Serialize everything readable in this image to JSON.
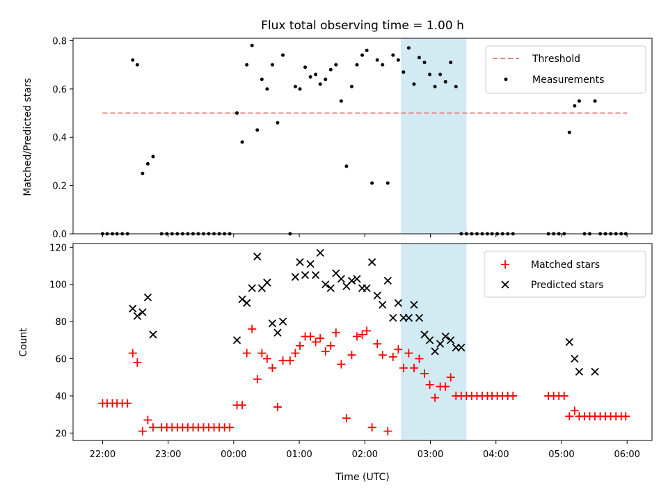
{
  "chart_data": [
    {
      "type": "scatter",
      "title": "Flux total observing time = 1.00 h",
      "xlabel": "",
      "ylabel": "Matched/Predicted stars",
      "ylim": [
        0,
        0.81
      ],
      "yticks": [
        "0.0",
        "0.2",
        "0.4",
        "0.6",
        "0.8"
      ],
      "x_axis": "time (hours after 22:00 UTC)",
      "xlim": [
        -0.45,
        8.38
      ],
      "highlight_span": {
        "start": 4.55,
        "end": 5.55,
        "color": "#add8e6"
      },
      "legend": {
        "position": "top-right",
        "items": [
          "Threshold",
          "Measurements"
        ]
      },
      "series": [
        {
          "name": "Threshold",
          "style": "dashed-line",
          "color": "#f08080",
          "x": [
            0,
            8.0
          ],
          "y": [
            0.5,
            0.5
          ]
        },
        {
          "name": "Measurements",
          "style": "dot",
          "color": "#000000",
          "x": [
            0,
            0.07,
            0.15,
            0.22,
            0.3,
            0.38,
            0.46,
            0.53,
            0.61,
            0.69,
            0.77,
            0.9,
            0.98,
            1.06,
            1.14,
            1.22,
            1.3,
            1.38,
            1.46,
            1.54,
            1.62,
            1.7,
            1.78,
            1.86,
            1.94,
            2.05,
            2.13,
            2.2,
            2.28,
            2.36,
            2.43,
            2.51,
            2.59,
            2.67,
            2.75,
            2.86,
            2.94,
            3.01,
            3.09,
            3.17,
            3.25,
            3.32,
            3.4,
            3.48,
            3.56,
            3.64,
            3.72,
            3.8,
            3.88,
            3.96,
            4.03,
            4.11,
            4.19,
            4.27,
            4.35,
            4.43,
            4.51,
            4.59,
            4.67,
            4.75,
            4.83,
            4.91,
            4.99,
            5.07,
            5.15,
            5.23,
            5.31,
            5.39,
            5.47,
            5.55,
            5.63,
            5.71,
            5.79,
            5.87,
            5.94,
            6.02,
            6.1,
            6.18,
            6.26,
            6.8,
            6.88,
            6.96,
            7.04,
            7.12,
            7.2,
            7.27,
            7.35,
            7.43,
            7.51,
            7.59,
            7.67,
            7.75,
            7.83,
            7.91,
            7.98
          ],
          "y": [
            0,
            0,
            0,
            0,
            0,
            0,
            0.72,
            0.7,
            0.25,
            0.29,
            0.32,
            0,
            0,
            0,
            0,
            0,
            0,
            0,
            0,
            0,
            0,
            0,
            0,
            0,
            0,
            0.5,
            0.38,
            0.7,
            0.78,
            0.43,
            0.64,
            0.6,
            0.7,
            0.46,
            0.74,
            0,
            0.61,
            0.6,
            0.69,
            0.65,
            0.66,
            0.62,
            0.64,
            0.68,
            0.7,
            0.55,
            0.28,
            0.61,
            0.7,
            0.74,
            0.76,
            0.21,
            0.72,
            0.7,
            0.21,
            0.74,
            0.72,
            0.67,
            0.77,
            0.62,
            0.73,
            0.71,
            0.66,
            0.61,
            0.66,
            0.63,
            0.71,
            0.61,
            0,
            0,
            0,
            0,
            0,
            0,
            0,
            0,
            0,
            0,
            0,
            0,
            0,
            0,
            0,
            0.42,
            0.53,
            0.55,
            0,
            0,
            0.55,
            0,
            0,
            0,
            0,
            0,
            0
          ]
        }
      ]
    },
    {
      "type": "scatter",
      "title": "",
      "xlabel": "Time (UTC)",
      "ylabel": "Count",
      "ylim": [
        16,
        122
      ],
      "yticks": [
        "20",
        "40",
        "60",
        "80",
        "100",
        "120"
      ],
      "x_axis": "time (hours after 22:00 UTC)",
      "xlim": [
        -0.45,
        8.38
      ],
      "xtick_labels": [
        "22:00",
        "23:00",
        "00:00",
        "01:00",
        "02:00",
        "03:00",
        "04:00",
        "05:00",
        "06:00"
      ],
      "highlight_span": {
        "start": 4.55,
        "end": 5.55,
        "color": "#add8e6"
      },
      "legend": {
        "position": "top-right",
        "items": [
          "Matched stars",
          "Predicted stars"
        ]
      },
      "series": [
        {
          "name": "Matched stars",
          "marker": "plus",
          "color": "#ff0000",
          "x": [
            0,
            0.07,
            0.15,
            0.22,
            0.3,
            0.38,
            0.46,
            0.53,
            0.61,
            0.69,
            0.77,
            0.9,
            0.98,
            1.06,
            1.14,
            1.22,
            1.3,
            1.38,
            1.46,
            1.54,
            1.62,
            1.7,
            1.78,
            1.86,
            1.94,
            2.05,
            2.13,
            2.2,
            2.28,
            2.36,
            2.43,
            2.51,
            2.59,
            2.67,
            2.75,
            2.86,
            2.94,
            3.01,
            3.09,
            3.17,
            3.25,
            3.32,
            3.4,
            3.48,
            3.56,
            3.64,
            3.72,
            3.8,
            3.88,
            3.96,
            4.03,
            4.11,
            4.19,
            4.27,
            4.35,
            4.43,
            4.51,
            4.59,
            4.67,
            4.75,
            4.83,
            4.91,
            4.99,
            5.07,
            5.15,
            5.23,
            5.31,
            5.39,
            5.47,
            5.55,
            5.63,
            5.71,
            5.79,
            5.87,
            5.94,
            6.02,
            6.1,
            6.18,
            6.26,
            6.8,
            6.88,
            6.96,
            7.04,
            7.12,
            7.2,
            7.27,
            7.35,
            7.43,
            7.51,
            7.59,
            7.67,
            7.75,
            7.83,
            7.91,
            7.98
          ],
          "y": [
            36,
            36,
            36,
            36,
            36,
            36,
            63,
            58,
            21,
            27,
            23,
            23,
            23,
            23,
            23,
            23,
            23,
            23,
            23,
            23,
            23,
            23,
            23,
            23,
            23,
            35,
            35,
            63,
            76,
            49,
            63,
            60,
            55,
            34,
            59,
            59,
            63,
            67,
            72,
            72,
            69,
            71,
            64,
            67,
            74,
            57,
            28,
            62,
            72,
            73,
            75,
            23,
            68,
            62,
            21,
            61,
            65,
            55,
            63,
            55,
            60,
            52,
            46,
            39,
            45,
            45,
            50,
            40,
            40,
            40,
            40,
            40,
            40,
            40,
            40,
            40,
            40,
            40,
            40,
            40,
            40,
            40,
            40,
            29,
            32,
            29,
            29,
            29,
            29,
            29,
            29,
            29,
            29,
            29,
            29
          ]
        },
        {
          "name": "Predicted stars",
          "marker": "x",
          "color": "#000000",
          "x": [
            0.46,
            0.53,
            0.61,
            0.69,
            0.77,
            2.05,
            2.13,
            2.2,
            2.28,
            2.36,
            2.43,
            2.51,
            2.59,
            2.67,
            2.75,
            2.94,
            3.01,
            3.09,
            3.17,
            3.25,
            3.32,
            3.4,
            3.48,
            3.56,
            3.64,
            3.72,
            3.8,
            3.88,
            3.96,
            4.03,
            4.11,
            4.19,
            4.27,
            4.35,
            4.43,
            4.51,
            4.59,
            4.67,
            4.75,
            4.83,
            4.91,
            4.99,
            5.07,
            5.15,
            5.23,
            5.31,
            5.39,
            5.47,
            7.12,
            7.2,
            7.27,
            7.51
          ],
          "y": [
            87,
            83,
            85,
            93,
            73,
            70,
            92,
            90,
            98,
            115,
            98,
            101,
            79,
            74,
            80,
            104,
            112,
            105,
            111,
            105,
            117,
            100,
            98,
            106,
            103,
            99,
            102,
            103,
            98,
            98,
            112,
            94,
            89,
            102,
            82,
            90,
            82,
            82,
            89,
            82,
            73,
            70,
            64,
            68,
            72,
            70,
            66,
            66,
            69,
            60,
            53,
            53
          ]
        }
      ]
    }
  ]
}
